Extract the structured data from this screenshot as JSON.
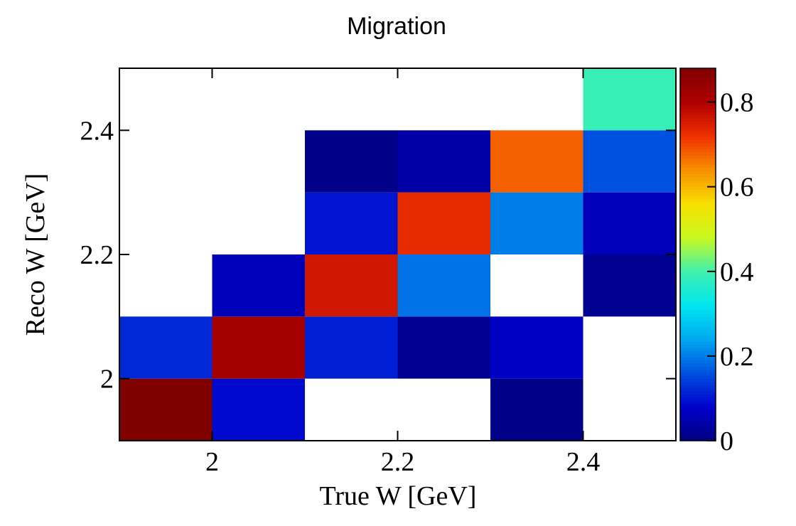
{
  "chart_data": {
    "type": "heatmap",
    "title": "Migration",
    "xlabel": "True W [GeV]",
    "ylabel": "Reco W [GeV]",
    "xlim": [
      1.9,
      2.5
    ],
    "ylim": [
      1.9,
      2.5
    ],
    "zlim": [
      0,
      0.88
    ],
    "x_bin_edges": [
      1.9,
      2.0,
      2.1,
      2.2,
      2.3,
      2.4,
      2.5
    ],
    "y_bin_edges": [
      1.9,
      2.0,
      2.1,
      2.2,
      2.3,
      2.4,
      2.5
    ],
    "x_ticks": [
      2.0,
      2.2,
      2.4
    ],
    "x_tick_labels": [
      "2",
      "2.2",
      "2.4"
    ],
    "y_ticks": [
      2.0,
      2.2,
      2.4
    ],
    "y_tick_labels": [
      "2",
      "2.2",
      "2.4"
    ],
    "z_ticks": [
      0,
      0.2,
      0.4,
      0.6,
      0.8
    ],
    "z_tick_labels": [
      "0",
      "0.2",
      "0.4",
      "0.6",
      "0.8"
    ],
    "colormap": [
      "#00007f",
      "#0000cc",
      "#0050e0",
      "#00a8f0",
      "#00e6f0",
      "#40f0b0",
      "#c8f820",
      "#f8e000",
      "#f89000",
      "#f03000",
      "#b00000",
      "#800000"
    ],
    "cells_comment_order": "rows from lowest reco bin (1.9-2.0) upward; columns from lowest true bin (1.9-2.0); null = empty",
    "cells": [
      [
        0.88,
        0.09,
        null,
        null,
        0.01,
        null
      ],
      [
        0.12,
        0.82,
        0.11,
        0.02,
        0.07,
        null
      ],
      [
        null,
        0.06,
        0.76,
        0.19,
        null,
        0.02
      ],
      [
        null,
        null,
        0.1,
        0.73,
        0.2,
        0.06
      ],
      [
        null,
        null,
        0.01,
        0.04,
        0.68,
        0.16
      ],
      [
        null,
        null,
        null,
        null,
        null,
        0.39
      ]
    ]
  }
}
